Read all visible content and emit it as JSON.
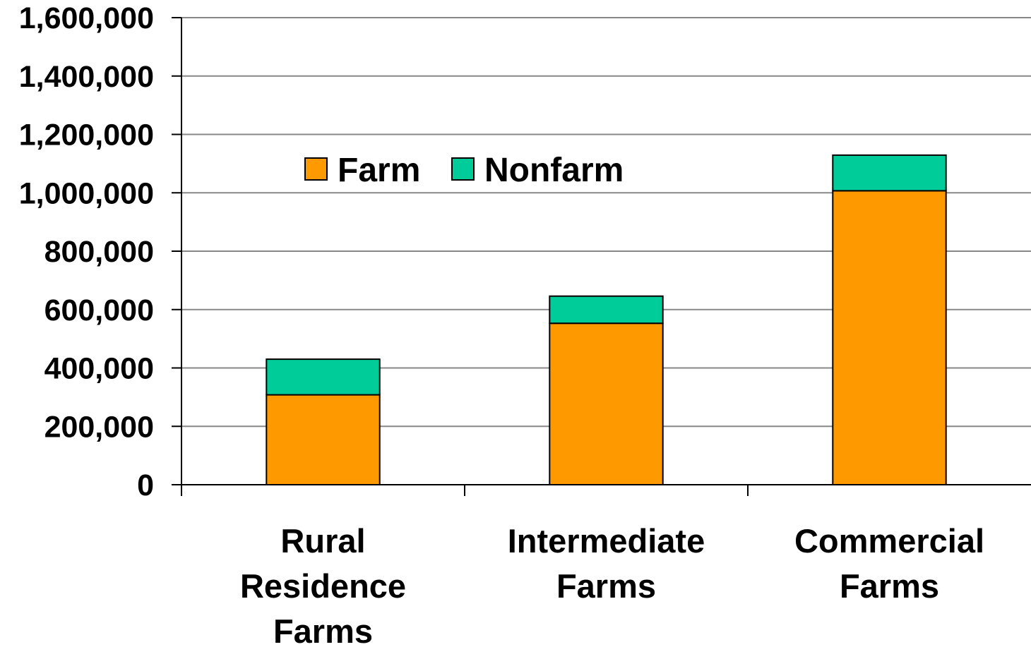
{
  "chart_data": {
    "type": "bar",
    "stacked": true,
    "categories": [
      [
        "Rural",
        "Residence",
        "Farms"
      ],
      [
        "Intermediate",
        "Farms"
      ],
      [
        "Commercial",
        "Farms"
      ]
    ],
    "series": [
      {
        "name": "Farm",
        "color": "#FF9900",
        "values": [
          308000,
          553000,
          1007000
        ]
      },
      {
        "name": "Nonfarm",
        "color": "#00CC99",
        "values": [
          122000,
          93000,
          122000
        ]
      }
    ],
    "ylim": [
      0,
      1600000
    ],
    "yticks": [
      "0",
      "200,000",
      "400,000",
      "600,000",
      "800,000",
      "1,000,000",
      "1,200,000",
      "1,400,000",
      "1,600,000"
    ],
    "grid": true,
    "legend": "top-left inside plot",
    "title": "",
    "xlabel": "",
    "ylabel": ""
  }
}
